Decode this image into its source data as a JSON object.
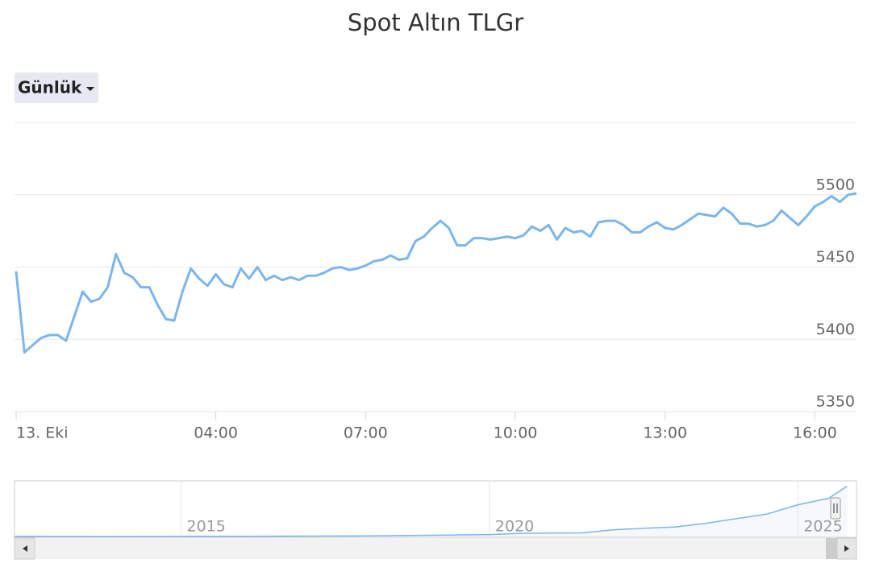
{
  "chart_data": {
    "type": "line",
    "title": "Spot Altın TLGr",
    "range_button": "Günlük",
    "x": [
      0,
      10,
      20,
      30,
      40,
      50,
      60,
      70,
      80,
      90,
      100,
      110,
      120,
      130,
      140,
      150,
      160,
      170,
      180,
      190,
      200,
      210,
      220,
      230,
      240,
      250,
      260,
      270,
      280,
      290,
      300,
      310,
      320,
      330,
      340,
      350,
      360,
      370,
      380,
      390,
      400,
      410,
      420,
      430,
      440,
      450,
      460,
      470,
      480,
      490,
      500,
      510,
      520,
      530,
      540,
      550,
      560,
      570,
      580,
      590,
      600,
      610,
      620,
      630,
      640,
      650,
      660,
      670,
      680,
      690,
      700,
      710,
      720,
      730,
      740,
      750,
      760,
      770,
      780,
      790,
      800,
      810,
      820,
      830,
      840,
      850,
      860,
      870,
      880,
      890,
      900,
      910,
      920,
      930,
      940,
      950,
      960,
      970,
      980,
      990,
      1000,
      1010
    ],
    "series": [
      {
        "color": "#7cb5ec",
        "values": [
          5447,
          5391,
          5396,
          5401,
          5403,
          5403,
          5399,
          5416,
          5433,
          5426,
          5428,
          5436,
          5459,
          5446,
          5443,
          5436,
          5436,
          5424,
          5414,
          5413,
          5433,
          5449,
          5442,
          5437,
          5445,
          5438,
          5436,
          5449,
          5442,
          5450,
          5441,
          5444,
          5441,
          5443,
          5441,
          5444,
          5444,
          5446,
          5449,
          5450,
          5448,
          5449,
          5451,
          5454,
          5455,
          5458,
          5455,
          5456,
          5468,
          5471,
          5477,
          5482,
          5477,
          5465,
          5465,
          5470,
          5470,
          5469,
          5470,
          5471,
          5470,
          5472,
          5478,
          5475,
          5479,
          5469,
          5477,
          5474,
          5475,
          5471,
          5481,
          5482,
          5482,
          5479,
          5474,
          5474,
          5478,
          5481,
          5477,
          5476,
          5479,
          5483,
          5487,
          5486,
          5485,
          5491,
          5487,
          5480,
          5480,
          5478,
          5479,
          5482,
          5489,
          5484,
          5479,
          5485,
          5492,
          5495,
          5499,
          5495,
          5500,
          5501
        ]
      }
    ],
    "xlim": [
      0,
      1010
    ],
    "xticks": [
      {
        "value": 0,
        "label": "13. Eki"
      },
      {
        "value": 240,
        "label": "04:00"
      },
      {
        "value": 420,
        "label": "07:00"
      },
      {
        "value": 600,
        "label": "10:00"
      },
      {
        "value": 780,
        "label": "13:00"
      },
      {
        "value": 960,
        "label": "16:00"
      }
    ],
    "ylim": [
      5350,
      5550
    ],
    "yticks": [
      5350,
      5400,
      5450,
      5500
    ],
    "grid": true,
    "navigator": {
      "x": [
        2012.3,
        2014,
        2016,
        2018,
        2019,
        2020,
        2020.5,
        2021,
        2021.5,
        2022,
        2022.5,
        2023,
        2023.5,
        2024,
        2024.5,
        2025,
        2025.5,
        2025.8
      ],
      "values": [
        100,
        90,
        110,
        150,
        220,
        290,
        420,
        450,
        480,
        800,
        980,
        1100,
        1500,
        2000,
        2500,
        3500,
        4200,
        5500
      ],
      "xlim": [
        2012.3,
        2025.95
      ],
      "ylim": [
        0,
        5800
      ],
      "xticks": [
        2015,
        2020,
        2025
      ]
    }
  }
}
